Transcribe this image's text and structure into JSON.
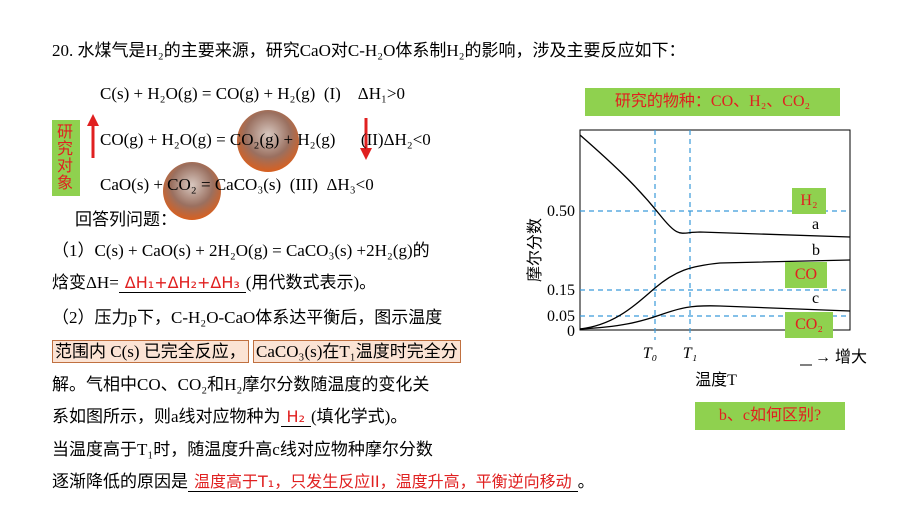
{
  "question": {
    "number": "20.",
    "intro": "水煤气是H₂的主要来源，研究CaO对C-H₂O体系制H₂的影响，涉及主要反应如下："
  },
  "reactions": [
    {
      "equation": "C(s) + H₂O(g) = CO(g) + H₂(g)",
      "label": "(I)",
      "enthalpy": "ΔH₁>0"
    },
    {
      "equation": "CO(g) + H₂O(g) = CO₂(g) + H₂(g)",
      "label": "(II)",
      "enthalpy": "ΔH₂<0"
    },
    {
      "equation": "CaO(s) + CO₂ = CaCO₃(s)",
      "label": "(III)",
      "enthalpy": "ΔH₃<0"
    }
  ],
  "side_label": "研究对象",
  "prompt": "回答列问题：",
  "part1": {
    "line1": "（1）C(s) + CaO(s) + 2H₂O(g) = CaCO₃(s) +2H₂(g)的",
    "prefix": "焓变ΔH=",
    "answer": "ΔH₁+ΔH₂+ΔH₃",
    "suffix": "(用代数式表示)。"
  },
  "part2": {
    "line1": "（2）压力p下，C-H₂O-CaO体系达平衡后，图示温度",
    "box1": "范围内 C(s) 已完全反应，",
    "box2": "CaCO₃(s)在T₁温度时完全分",
    "line3": "解。气相中CO、CO₂和H₂摩尔分数随温度的变化关",
    "line4_prefix": "系如图所示，则a线对应物种为",
    "answer1": "H₂",
    "line4_suffix": "(填化学式)。",
    "line5": "当温度高于T₁时，随温度升高c线对应物种摩尔分数",
    "line6_prefix": "逐渐降低的原因是",
    "answer2": "温度高于T₁，只发生反应II，温度升高，平衡逆向移动",
    "line6_suffix": "。"
  },
  "figure": {
    "species_note": "研究的物种：CO、H₂、CO₂",
    "y_label": "摩尔分数",
    "y_ticks": [
      "0.50",
      "0.15",
      "0.05",
      "0"
    ],
    "x_ticks": [
      "T₀",
      "T₁"
    ],
    "x_label": "温度T",
    "x_direction": "→ 增大",
    "curve_labels": [
      "a",
      "b",
      "c"
    ],
    "species_tags": [
      "H₂",
      "CO",
      "CO₂"
    ],
    "question": "b、c如何区别?"
  }
}
